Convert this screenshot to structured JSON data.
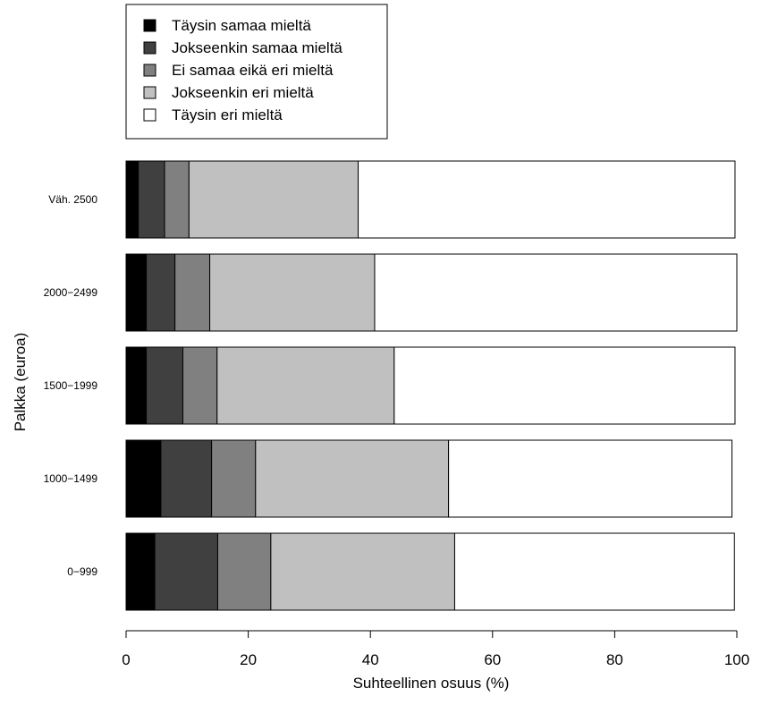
{
  "chart_data": {
    "type": "bar",
    "orientation": "horizontal",
    "stacked": true,
    "categories": [
      "Väh. 2500",
      "2000−2499",
      "1500−1999",
      "1000−1499",
      "0−999"
    ],
    "series": [
      {
        "name": "Täysin samaa mieltä",
        "color": "#000000",
        "values": [
          2.0,
          3.3,
          3.3,
          5.7,
          4.7
        ]
      },
      {
        "name": "Jokseenkin samaa mieltä",
        "color": "#404040",
        "values": [
          4.3,
          4.7,
          6.0,
          8.3,
          10.3
        ]
      },
      {
        "name": "Ei samaa eikä eri mieltä",
        "color": "#808080",
        "values": [
          4.0,
          5.7,
          5.6,
          7.2,
          8.7
        ]
      },
      {
        "name": "Jokseenkin eri mieltä",
        "color": "#c0c0c0",
        "values": [
          27.7,
          27.0,
          29.0,
          31.6,
          30.1
        ]
      },
      {
        "name": "Täysin eri mieltä",
        "color": "#ffffff",
        "values": [
          61.7,
          59.3,
          55.8,
          46.4,
          45.8
        ]
      }
    ],
    "xlabel": "Suhteellinen osuus (%)",
    "ylabel": "Palkka (euroa)",
    "xlim": [
      0,
      100
    ],
    "xticks": [
      0,
      20,
      40,
      60,
      80,
      100
    ],
    "legend_position": "top-left",
    "grid": false
  }
}
